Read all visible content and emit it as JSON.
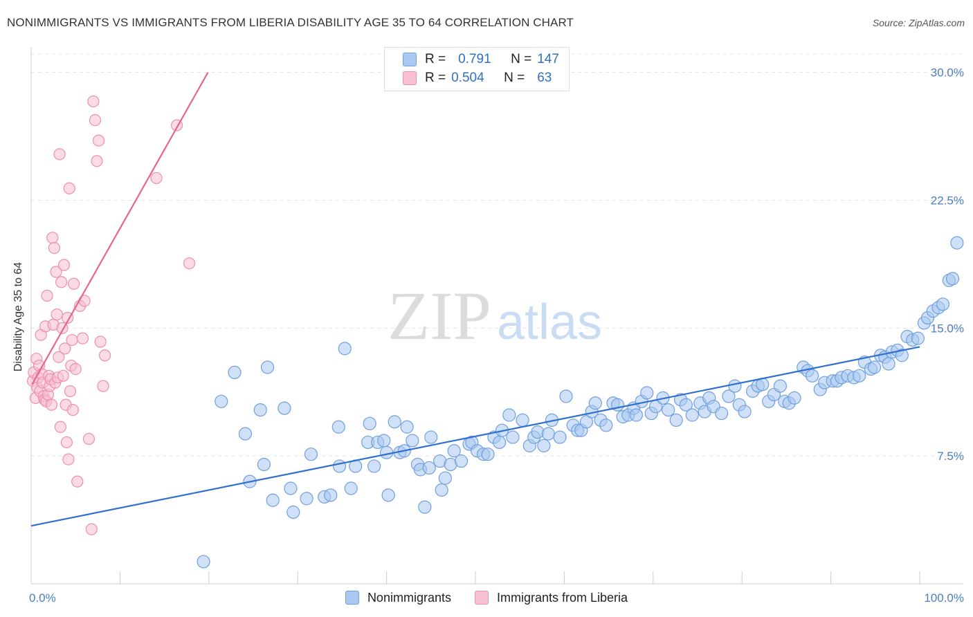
{
  "header": {
    "title": "NONIMMIGRANTS VS IMMIGRANTS FROM LIBERIA DISABILITY AGE 35 TO 64 CORRELATION CHART",
    "source": "Source: ZipAtlas.com"
  },
  "stats": {
    "r_label": "R =",
    "n_label": "N =",
    "series1": {
      "r": "0.791",
      "n": "147"
    },
    "series2": {
      "r": "0.504",
      "n": "63"
    }
  },
  "colors": {
    "blue_fill": "#aac8f0",
    "blue_stroke": "#6f9fdf",
    "blue_line": "#2f6fd0",
    "pink_fill": "#f8c0d0",
    "pink_stroke": "#ec8ead",
    "pink_line": "#e8638f",
    "tick_text": "#4a7cc9",
    "grid": "#e4e4e4"
  },
  "watermark": {
    "zip": "ZIP",
    "atlas": "atlas"
  },
  "chart_data": {
    "type": "scatter",
    "title": "NONIMMIGRANTS VS IMMIGRANTS FROM LIBERIA DISABILITY AGE 35 TO 64 CORRELATION CHART",
    "xlabel": "",
    "ylabel": "Disability Age 35 to 64",
    "xlim": [
      0,
      100
    ],
    "ylim": [
      0,
      31
    ],
    "x_tick_labels": [
      "0.0%",
      "100.0%"
    ],
    "y_ticks": [
      7.5,
      15.0,
      22.5,
      30.0
    ],
    "y_tick_labels": [
      "7.5%",
      "15.0%",
      "22.5%",
      "30.0%"
    ],
    "legend_position": "bottom-center",
    "series": [
      {
        "name": "Nonimmigrants",
        "r": 0.791,
        "n": 147,
        "trendline": [
          [
            0,
            3.4
          ],
          [
            100,
            13.9
          ]
        ],
        "points": [
          [
            19.4,
            1.3
          ],
          [
            21.4,
            10.7
          ],
          [
            22.9,
            12.4
          ],
          [
            24.1,
            8.8
          ],
          [
            24.6,
            6.0
          ],
          [
            25.8,
            10.2
          ],
          [
            26.2,
            7.0
          ],
          [
            26.6,
            12.7
          ],
          [
            27.2,
            4.9
          ],
          [
            28.5,
            10.3
          ],
          [
            29.2,
            5.6
          ],
          [
            29.5,
            4.2
          ],
          [
            31.0,
            5.0
          ],
          [
            31.5,
            7.6
          ],
          [
            33.0,
            5.1
          ],
          [
            33.7,
            5.2
          ],
          [
            34.6,
            9.2
          ],
          [
            34.7,
            6.9
          ],
          [
            35.3,
            13.8
          ],
          [
            36.0,
            5.6
          ],
          [
            36.5,
            6.9
          ],
          [
            37.9,
            8.3
          ],
          [
            38.1,
            9.4
          ],
          [
            38.6,
            6.9
          ],
          [
            39.0,
            8.3
          ],
          [
            39.7,
            8.4
          ],
          [
            40.0,
            7.7
          ],
          [
            40.2,
            5.2
          ],
          [
            40.9,
            9.5
          ],
          [
            41.5,
            7.7
          ],
          [
            42.0,
            7.8
          ],
          [
            42.3,
            9.2
          ],
          [
            42.9,
            8.4
          ],
          [
            43.5,
            7.0
          ],
          [
            43.8,
            6.7
          ],
          [
            44.3,
            4.5
          ],
          [
            44.8,
            6.8
          ],
          [
            45.0,
            8.6
          ],
          [
            46.0,
            7.2
          ],
          [
            46.2,
            5.5
          ],
          [
            46.6,
            6.2
          ],
          [
            47.2,
            7.0
          ],
          [
            47.6,
            7.8
          ],
          [
            48.4,
            7.2
          ],
          [
            49.3,
            8.2
          ],
          [
            49.6,
            8.3
          ],
          [
            50.2,
            7.8
          ],
          [
            50.9,
            7.6
          ],
          [
            51.4,
            7.6
          ],
          [
            52.1,
            8.6
          ],
          [
            52.7,
            8.3
          ],
          [
            53.0,
            9.0
          ],
          [
            53.8,
            9.9
          ],
          [
            54.2,
            8.6
          ],
          [
            55.3,
            9.6
          ],
          [
            56.1,
            8.1
          ],
          [
            56.6,
            8.6
          ],
          [
            57.0,
            8.9
          ],
          [
            57.7,
            8.1
          ],
          [
            58.2,
            8.8
          ],
          [
            58.6,
            9.6
          ],
          [
            59.5,
            8.6
          ],
          [
            60.2,
            11.0
          ],
          [
            61.0,
            9.3
          ],
          [
            61.5,
            9.0
          ],
          [
            61.9,
            9.0
          ],
          [
            62.5,
            9.5
          ],
          [
            63.1,
            10.1
          ],
          [
            63.5,
            10.6
          ],
          [
            64.1,
            9.6
          ],
          [
            64.7,
            9.3
          ],
          [
            65.5,
            10.6
          ],
          [
            66.0,
            10.5
          ],
          [
            66.6,
            9.8
          ],
          [
            67.2,
            9.9
          ],
          [
            67.8,
            10.3
          ],
          [
            68.1,
            9.9
          ],
          [
            68.7,
            10.7
          ],
          [
            69.3,
            11.2
          ],
          [
            69.8,
            10.0
          ],
          [
            70.3,
            10.4
          ],
          [
            71.1,
            10.9
          ],
          [
            71.7,
            10.2
          ],
          [
            72.6,
            9.6
          ],
          [
            73.1,
            10.8
          ],
          [
            73.7,
            10.5
          ],
          [
            74.4,
            9.9
          ],
          [
            75.3,
            10.6
          ],
          [
            75.8,
            10.1
          ],
          [
            76.3,
            10.9
          ],
          [
            76.8,
            10.4
          ],
          [
            77.7,
            10.0
          ],
          [
            78.5,
            11.0
          ],
          [
            79.2,
            11.6
          ],
          [
            79.7,
            10.5
          ],
          [
            80.3,
            10.1
          ],
          [
            81.2,
            11.3
          ],
          [
            81.8,
            11.6
          ],
          [
            82.3,
            11.7
          ],
          [
            83.0,
            10.7
          ],
          [
            83.6,
            11.1
          ],
          [
            84.3,
            11.6
          ],
          [
            84.8,
            10.7
          ],
          [
            85.3,
            10.6
          ],
          [
            85.9,
            10.9
          ],
          [
            86.9,
            12.7
          ],
          [
            87.4,
            12.5
          ],
          [
            87.9,
            12.2
          ],
          [
            88.8,
            11.4
          ],
          [
            89.3,
            11.8
          ],
          [
            90.2,
            11.9
          ],
          [
            90.7,
            11.9
          ],
          [
            91.2,
            12.1
          ],
          [
            91.9,
            12.2
          ],
          [
            92.6,
            12.1
          ],
          [
            93.2,
            12.2
          ],
          [
            93.8,
            13.0
          ],
          [
            94.5,
            12.6
          ],
          [
            94.9,
            12.7
          ],
          [
            95.6,
            13.4
          ],
          [
            96.1,
            13.3
          ],
          [
            96.5,
            12.9
          ],
          [
            96.9,
            13.6
          ],
          [
            97.5,
            13.7
          ],
          [
            98.0,
            13.4
          ],
          [
            98.6,
            14.5
          ],
          [
            99.2,
            14.3
          ],
          [
            99.8,
            14.4
          ],
          [
            100.5,
            15.3
          ],
          [
            100.9,
            15.6
          ],
          [
            101.5,
            16.0
          ],
          [
            102.1,
            16.2
          ],
          [
            102.6,
            16.4
          ],
          [
            103.3,
            17.8
          ],
          [
            103.7,
            17.9
          ],
          [
            104.2,
            20.0
          ]
        ]
      },
      {
        "name": "Immigrants from Liberia",
        "r": 0.504,
        "n": 63,
        "trendline": [
          [
            0.1,
            11.7
          ],
          [
            19.9,
            30.0
          ]
        ],
        "points": [
          [
            0.2,
            11.9
          ],
          [
            0.3,
            12.4
          ],
          [
            0.5,
            10.9
          ],
          [
            0.6,
            13.2
          ],
          [
            0.7,
            11.5
          ],
          [
            0.8,
            12.1
          ],
          [
            0.9,
            12.8
          ],
          [
            1.0,
            11.3
          ],
          [
            1.1,
            14.6
          ],
          [
            1.2,
            12.3
          ],
          [
            1.3,
            11.8
          ],
          [
            1.4,
            11.0
          ],
          [
            1.5,
            10.8
          ],
          [
            1.6,
            15.1
          ],
          [
            1.7,
            10.7
          ],
          [
            1.8,
            16.9
          ],
          [
            1.9,
            11.1
          ],
          [
            2.0,
            12.2
          ],
          [
            2.1,
            11.6
          ],
          [
            2.2,
            12.0
          ],
          [
            2.3,
            10.5
          ],
          [
            2.4,
            20.3
          ],
          [
            2.5,
            15.2
          ],
          [
            2.6,
            19.7
          ],
          [
            2.7,
            11.8
          ],
          [
            2.8,
            18.3
          ],
          [
            2.9,
            15.8
          ],
          [
            3.0,
            12.1
          ],
          [
            3.1,
            13.3
          ],
          [
            3.2,
            25.2
          ],
          [
            3.3,
            9.2
          ],
          [
            3.4,
            17.7
          ],
          [
            3.5,
            15.0
          ],
          [
            3.6,
            12.2
          ],
          [
            3.7,
            18.7
          ],
          [
            3.8,
            13.8
          ],
          [
            3.9,
            10.5
          ],
          [
            4.0,
            8.3
          ],
          [
            4.1,
            15.6
          ],
          [
            4.2,
            7.3
          ],
          [
            4.3,
            23.2
          ],
          [
            4.4,
            11.3
          ],
          [
            4.5,
            12.8
          ],
          [
            4.6,
            14.3
          ],
          [
            4.7,
            10.2
          ],
          [
            4.8,
            17.6
          ],
          [
            5.0,
            12.6
          ],
          [
            5.2,
            6.0
          ],
          [
            5.5,
            16.3
          ],
          [
            5.8,
            14.4
          ],
          [
            6.0,
            16.6
          ],
          [
            6.5,
            8.5
          ],
          [
            6.8,
            3.2
          ],
          [
            7.0,
            28.3
          ],
          [
            7.2,
            27.2
          ],
          [
            7.4,
            24.8
          ],
          [
            7.6,
            26.0
          ],
          [
            7.8,
            14.2
          ],
          [
            8.1,
            11.6
          ],
          [
            8.3,
            13.4
          ],
          [
            14.1,
            23.8
          ],
          [
            16.4,
            26.9
          ],
          [
            17.8,
            18.8
          ]
        ]
      }
    ]
  }
}
